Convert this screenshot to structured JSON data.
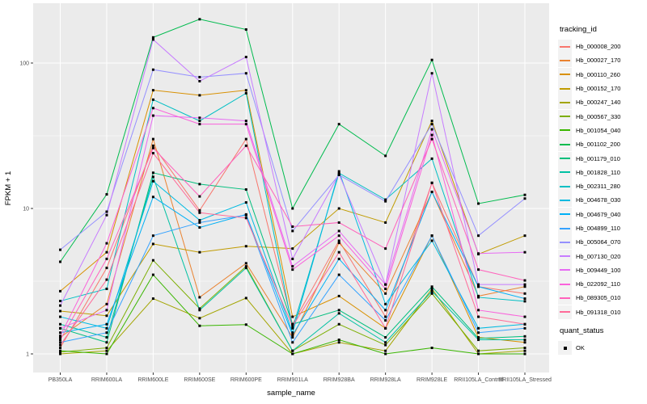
{
  "figure": {
    "background": "#FFFFFF",
    "panel_background": "#EBEBEB",
    "gridline_color": "#FFFFFF",
    "tick_color": "#333333",
    "tick_label_color": "#4D4D4D",
    "point_color": "#000000"
  },
  "legend": {
    "title": "tracking_id"
  },
  "legend2": {
    "title": "quant_status",
    "items": [
      {
        "label": "OK",
        "symbol": "black-square"
      }
    ]
  },
  "chart_data": {
    "type": "line",
    "title": "",
    "xlabel": "sample_name",
    "ylabel": "FPKM + 1",
    "y_scale": "log10",
    "y_ticks": [
      1,
      10,
      100
    ],
    "y_minor_ticks": [
      3.162,
      31.62
    ],
    "ylim": [
      0.95,
      230
    ],
    "grid": true,
    "legend_position": "right",
    "marker": "small-black-square",
    "categories": [
      "PB350LA",
      "RRIM600LA",
      "RRIM600LE",
      "RRIM600SE",
      "RRIM600PE",
      "RRIM901LA",
      "RRIM928BA",
      "RRIM928LA",
      "RRIM928LE",
      "RRII105LA_Control",
      "RRII105LA_Stressed"
    ],
    "series": [
      {
        "name": "Hb_000008_200",
        "color": "#F8766D",
        "values": [
          1.1,
          3.9,
          27.0,
          9.7,
          30.0,
          1.6,
          6.0,
          1.8,
          15.0,
          2.9,
          2.6
        ]
      },
      {
        "name": "Hb_000027_170",
        "color": "#EA8331",
        "values": [
          1.3,
          2.2,
          30.0,
          2.45,
          4.2,
          1.3,
          5.8,
          2.6,
          13.0,
          2.5,
          2.9
        ]
      },
      {
        "name": "Hb_000110_260",
        "color": "#D89000",
        "values": [
          2.7,
          5.0,
          65.0,
          60.0,
          65.0,
          1.8,
          2.5,
          1.5,
          6.5,
          1.3,
          1.2
        ]
      },
      {
        "name": "Hb_000152_170",
        "color": "#C09B00",
        "values": [
          1.97,
          1.83,
          5.7,
          5.0,
          5.5,
          5.3,
          10.0,
          8.0,
          40.0,
          4.85,
          6.5
        ]
      },
      {
        "name": "Hb_000247_140",
        "color": "#A3A500",
        "values": [
          1.0,
          1.05,
          2.4,
          1.76,
          2.42,
          1.0,
          1.2,
          1.05,
          2.8,
          1.0,
          1.05
        ]
      },
      {
        "name": "Hb_000567_330",
        "color": "#7CAE00",
        "values": [
          1.03,
          1.1,
          4.4,
          2.05,
          4.0,
          1.05,
          1.6,
          1.15,
          2.6,
          1.05,
          1.1
        ]
      },
      {
        "name": "Hb_001054_040",
        "color": "#39B600",
        "values": [
          1.05,
          1.0,
          3.5,
          1.56,
          1.59,
          1.0,
          1.25,
          1.0,
          1.1,
          1.0,
          1.0
        ]
      },
      {
        "name": "Hb_001102_200",
        "color": "#00BB4E",
        "values": [
          4.3,
          12.5,
          150,
          200,
          170,
          10.0,
          38.0,
          23.0,
          105,
          10.8,
          12.4
        ]
      },
      {
        "name": "Hb_001179_010",
        "color": "#00BF7D",
        "values": [
          1.5,
          1.2,
          17.6,
          14.7,
          13.5,
          1.6,
          2.0,
          1.3,
          2.9,
          1.28,
          1.32
        ]
      },
      {
        "name": "Hb_001828_110",
        "color": "#00C1A3",
        "values": [
          1.6,
          1.3,
          16.5,
          2.0,
          3.9,
          1.05,
          1.9,
          1.2,
          2.7,
          1.25,
          1.25
        ]
      },
      {
        "name": "Hb_002311_280",
        "color": "#00BFC4",
        "values": [
          2.31,
          2.8,
          56.0,
          40.0,
          62.0,
          1.5,
          17.5,
          11.5,
          22.0,
          2.45,
          2.3
        ]
      },
      {
        "name": "Hb_004678_030",
        "color": "#00BAE0",
        "values": [
          1.8,
          1.5,
          15.4,
          8.3,
          11.0,
          1.4,
          18.0,
          2.2,
          6.0,
          1.5,
          1.6
        ]
      },
      {
        "name": "Hb_004679_040",
        "color": "#00B0F6",
        "values": [
          1.4,
          1.6,
          12.0,
          7.4,
          9.1,
          1.35,
          4.5,
          2.0,
          13.0,
          2.9,
          2.4
        ]
      },
      {
        "name": "Hb_004899_110",
        "color": "#35A2FF",
        "values": [
          1.2,
          1.4,
          6.5,
          8.0,
          9.0,
          1.2,
          3.5,
          1.7,
          6.5,
          1.4,
          1.5
        ]
      },
      {
        "name": "Hb_005064_070",
        "color": "#9590FF",
        "values": [
          5.2,
          9.5,
          90.0,
          80.0,
          85.0,
          7.0,
          17.0,
          11.2,
          38.0,
          6.5,
          11.7
        ]
      },
      {
        "name": "Hb_007130_020",
        "color": "#C77CFF",
        "values": [
          2.15,
          9.0,
          145,
          75.0,
          110,
          4.5,
          17.2,
          3.0,
          85.0,
          3.0,
          3.0
        ]
      },
      {
        "name": "Hb_009449_100",
        "color": "#E76BF3",
        "values": [
          1.5,
          2.0,
          43.5,
          42.0,
          40.0,
          4.0,
          7.0,
          3.0,
          35.0,
          4.9,
          5.0
        ]
      },
      {
        "name": "Hb_022092_110",
        "color": "#FA62DB",
        "values": [
          1.33,
          5.76,
          49.0,
          38.0,
          38.0,
          3.8,
          6.5,
          2.8,
          32.0,
          2.0,
          1.8
        ]
      },
      {
        "name": "Hb_089305_010",
        "color": "#FF62BC",
        "values": [
          1.25,
          4.5,
          26.0,
          12.1,
          27.0,
          7.5,
          8.0,
          5.3,
          30.0,
          3.8,
          3.2
        ]
      },
      {
        "name": "Hb_091318_010",
        "color": "#FF6A98",
        "values": [
          1.15,
          3.24,
          24.0,
          9.35,
          8.6,
          1.55,
          5.0,
          1.5,
          15.0,
          1.8,
          1.6
        ]
      }
    ]
  }
}
